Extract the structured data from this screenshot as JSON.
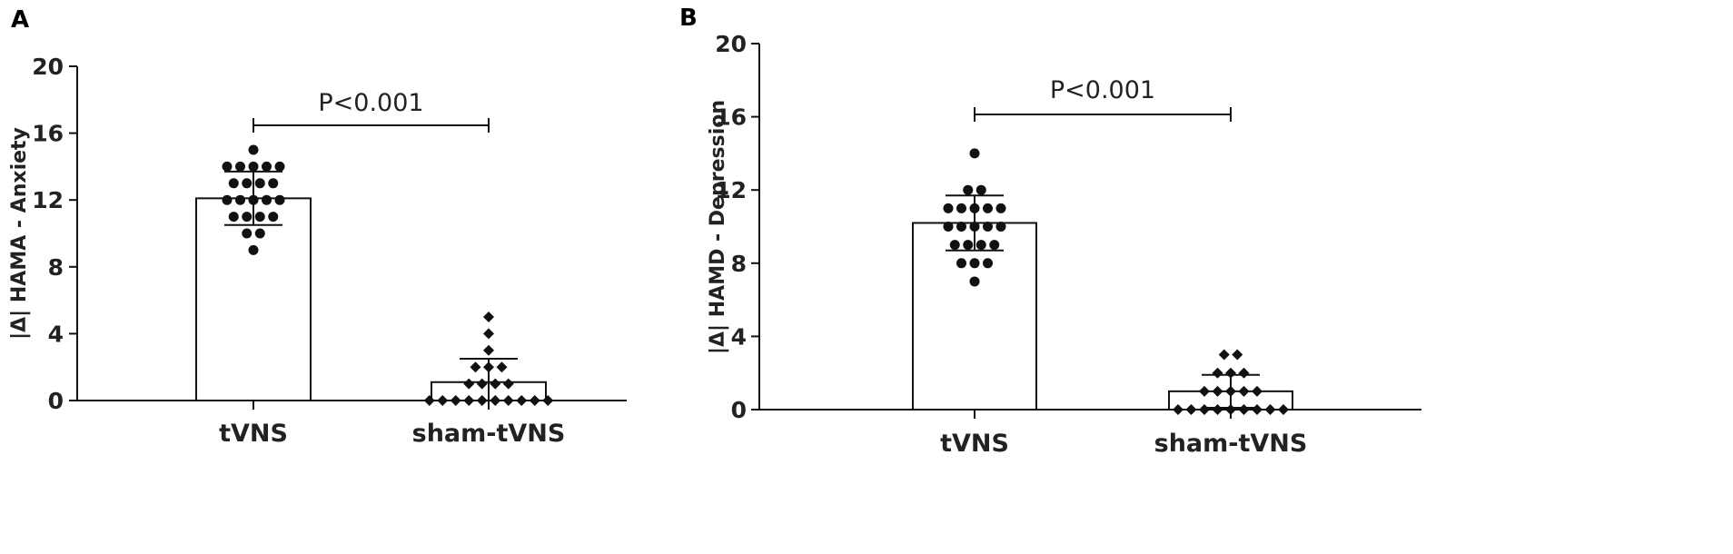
{
  "chart_data": [
    {
      "panel": "A",
      "type": "bar",
      "ylabel": "|Δ| HAMA - Anxiety",
      "ylim": [
        0,
        20
      ],
      "yticks": [
        "0",
        "4",
        "8",
        "12",
        "16",
        "20"
      ],
      "categories": [
        "tVNS",
        "sham-tVNS"
      ],
      "values": [
        12.1,
        1.1
      ],
      "sd": [
        1.6,
        1.4
      ],
      "points": [
        [
          15,
          14,
          14,
          14,
          14,
          14,
          13,
          13,
          13,
          13,
          12,
          12,
          12,
          12,
          12,
          11,
          11,
          11,
          11,
          10,
          10,
          9
        ],
        [
          5,
          4,
          3,
          2,
          2,
          2,
          1,
          1,
          1,
          1,
          0,
          0,
          0,
          0,
          0,
          0,
          0,
          0,
          0,
          0
        ]
      ],
      "comparison": "P<0.001"
    },
    {
      "panel": "B",
      "type": "bar",
      "ylabel": "|Δ| HAMD - Depression",
      "ylim": [
        0,
        20
      ],
      "yticks": [
        "0",
        "4",
        "8",
        "12",
        "16",
        "20"
      ],
      "categories": [
        "tVNS",
        "sham-tVNS"
      ],
      "values": [
        10.2,
        1.0
      ],
      "sd": [
        1.5,
        0.9
      ],
      "points": [
        [
          14,
          12,
          12,
          11,
          11,
          11,
          11,
          11,
          10,
          10,
          10,
          10,
          10,
          9,
          9,
          9,
          9,
          8,
          8,
          8,
          7
        ],
        [
          3,
          3,
          2,
          2,
          2,
          1,
          1,
          1,
          1,
          1,
          0,
          0,
          0,
          0,
          0,
          0,
          0,
          0,
          0
        ]
      ],
      "comparison": "P<0.001"
    }
  ],
  "colors": {
    "ink": "#111111",
    "bar_fill": "#ffffff"
  }
}
